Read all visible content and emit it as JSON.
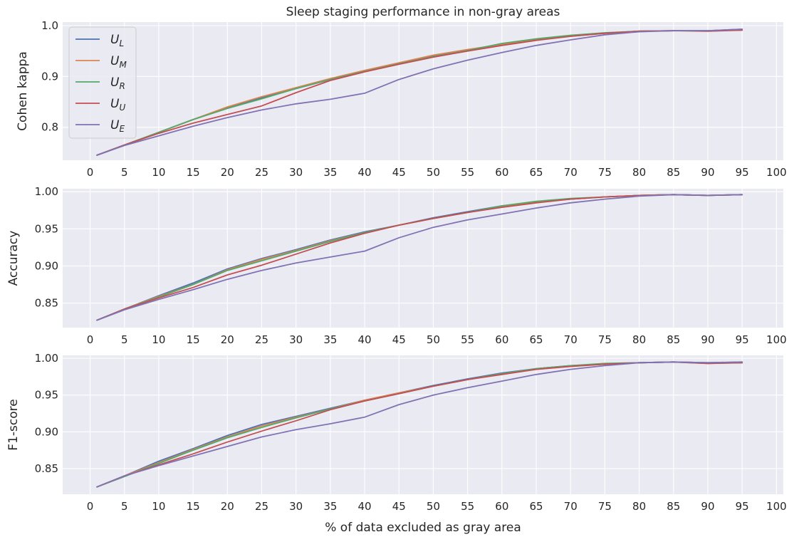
{
  "title": "Sleep staging performance in non-gray areas",
  "xlabel": "% of data excluded as gray area",
  "colors": {
    "background": "#eaeaf2",
    "grid": "#ffffff",
    "U_L": "#4c72b0",
    "U_M": "#dd8452",
    "U_R": "#55a868",
    "U_U": "#c44e52",
    "U_E": "#8172b3"
  },
  "legend": {
    "placement": "upper-left of first panel",
    "entries": [
      {
        "key": "U_L",
        "base": "U",
        "sub": "L"
      },
      {
        "key": "U_M",
        "base": "U",
        "sub": "M"
      },
      {
        "key": "U_R",
        "base": "U",
        "sub": "R"
      },
      {
        "key": "U_U",
        "base": "U",
        "sub": "U"
      },
      {
        "key": "U_E",
        "base": "U",
        "sub": "E"
      }
    ]
  },
  "chart_data": [
    {
      "type": "line",
      "ylabel": "Cohen kappa",
      "xlim": [
        -4,
        101
      ],
      "ylim": [
        0.735,
        1.007
      ],
      "xticks": [
        0,
        5,
        10,
        15,
        20,
        25,
        30,
        35,
        40,
        45,
        50,
        55,
        60,
        65,
        70,
        75,
        80,
        85,
        90,
        95,
        100
      ],
      "yticks": [
        0.8,
        0.9,
        1.0
      ],
      "ytick_labels": [
        "0.8",
        "0.9",
        "1.0"
      ],
      "grid": true,
      "x": [
        1,
        5,
        10,
        15,
        20,
        25,
        30,
        35,
        40,
        45,
        50,
        55,
        60,
        65,
        70,
        75,
        80,
        85,
        90,
        95
      ],
      "series": [
        {
          "key": "U_L",
          "values": [
            0.745,
            0.765,
            0.79,
            0.815,
            0.838,
            0.858,
            0.876,
            0.894,
            0.91,
            0.925,
            0.94,
            0.952,
            0.964,
            0.973,
            0.98,
            0.985,
            0.989,
            0.99,
            0.99,
            0.993
          ]
        },
        {
          "key": "U_M",
          "values": [
            0.745,
            0.765,
            0.79,
            0.815,
            0.84,
            0.86,
            0.878,
            0.896,
            0.912,
            0.927,
            0.942,
            0.953,
            0.963,
            0.972,
            0.979,
            0.985,
            0.989,
            0.99,
            0.99,
            0.992
          ]
        },
        {
          "key": "U_R",
          "values": [
            0.745,
            0.765,
            0.79,
            0.815,
            0.837,
            0.856,
            0.876,
            0.894,
            0.91,
            0.925,
            0.939,
            0.951,
            0.965,
            0.974,
            0.981,
            0.986,
            0.989,
            0.99,
            0.99,
            0.991
          ]
        },
        {
          "key": "U_U",
          "values": [
            0.745,
            0.765,
            0.788,
            0.808,
            0.825,
            0.842,
            0.868,
            0.892,
            0.909,
            0.924,
            0.938,
            0.95,
            0.961,
            0.971,
            0.979,
            0.985,
            0.989,
            0.99,
            0.989,
            0.991
          ]
        },
        {
          "key": "U_E",
          "values": [
            0.745,
            0.764,
            0.783,
            0.802,
            0.819,
            0.834,
            0.846,
            0.855,
            0.867,
            0.894,
            0.915,
            0.932,
            0.947,
            0.961,
            0.972,
            0.982,
            0.988,
            0.99,
            0.99,
            0.993
          ]
        }
      ]
    },
    {
      "type": "line",
      "ylabel": "Accuracy",
      "xlim": [
        -4,
        101
      ],
      "ylim": [
        0.817,
        1.004
      ],
      "xticks": [
        0,
        5,
        10,
        15,
        20,
        25,
        30,
        35,
        40,
        45,
        50,
        55,
        60,
        65,
        70,
        75,
        80,
        85,
        90,
        95,
        100
      ],
      "yticks": [
        0.85,
        0.9,
        0.95,
        1.0
      ],
      "ytick_labels": [
        "0.85",
        "0.90",
        "0.95",
        "1.00"
      ],
      "grid": true,
      "x": [
        1,
        5,
        10,
        15,
        20,
        25,
        30,
        35,
        40,
        45,
        50,
        55,
        60,
        65,
        70,
        75,
        80,
        85,
        90,
        95
      ],
      "series": [
        {
          "key": "U_L",
          "values": [
            0.827,
            0.842,
            0.86,
            0.877,
            0.896,
            0.91,
            0.922,
            0.935,
            0.946,
            0.955,
            0.965,
            0.973,
            0.981,
            0.986,
            0.99,
            0.993,
            0.995,
            0.996,
            0.995,
            0.996
          ]
        },
        {
          "key": "U_M",
          "values": [
            0.827,
            0.842,
            0.859,
            0.875,
            0.895,
            0.909,
            0.921,
            0.934,
            0.945,
            0.955,
            0.964,
            0.972,
            0.98,
            0.986,
            0.99,
            0.993,
            0.995,
            0.996,
            0.995,
            0.996
          ]
        },
        {
          "key": "U_R",
          "values": [
            0.827,
            0.842,
            0.858,
            0.875,
            0.894,
            0.907,
            0.92,
            0.933,
            0.945,
            0.955,
            0.964,
            0.972,
            0.981,
            0.987,
            0.991,
            0.993,
            0.995,
            0.996,
            0.995,
            0.996
          ]
        },
        {
          "key": "U_U",
          "values": [
            0.827,
            0.842,
            0.857,
            0.871,
            0.888,
            0.901,
            0.916,
            0.931,
            0.944,
            0.955,
            0.964,
            0.972,
            0.979,
            0.985,
            0.99,
            0.993,
            0.995,
            0.996,
            0.995,
            0.996
          ]
        },
        {
          "key": "U_E",
          "values": [
            0.827,
            0.841,
            0.855,
            0.868,
            0.882,
            0.894,
            0.904,
            0.912,
            0.92,
            0.938,
            0.952,
            0.962,
            0.97,
            0.978,
            0.985,
            0.99,
            0.994,
            0.996,
            0.995,
            0.996
          ]
        }
      ]
    },
    {
      "type": "line",
      "ylabel": "F1-score",
      "xlabel": "% of data excluded as gray area",
      "xlim": [
        -4,
        101
      ],
      "ylim": [
        0.815,
        1.004
      ],
      "xticks": [
        0,
        5,
        10,
        15,
        20,
        25,
        30,
        35,
        40,
        45,
        50,
        55,
        60,
        65,
        70,
        75,
        80,
        85,
        90,
        95,
        100
      ],
      "yticks": [
        0.85,
        0.9,
        0.95,
        1.0
      ],
      "ytick_labels": [
        "0.85",
        "0.90",
        "0.95",
        "1.00"
      ],
      "grid": true,
      "x": [
        1,
        5,
        10,
        15,
        20,
        25,
        30,
        35,
        40,
        45,
        50,
        55,
        60,
        65,
        70,
        75,
        80,
        85,
        90,
        95
      ],
      "series": [
        {
          "key": "U_L",
          "values": [
            0.825,
            0.84,
            0.86,
            0.877,
            0.895,
            0.91,
            0.921,
            0.932,
            0.943,
            0.953,
            0.963,
            0.972,
            0.98,
            0.986,
            0.99,
            0.992,
            0.994,
            0.995,
            0.994,
            0.995
          ]
        },
        {
          "key": "U_M",
          "values": [
            0.825,
            0.84,
            0.858,
            0.876,
            0.893,
            0.908,
            0.92,
            0.931,
            0.943,
            0.953,
            0.962,
            0.971,
            0.979,
            0.985,
            0.989,
            0.992,
            0.994,
            0.995,
            0.994,
            0.994
          ]
        },
        {
          "key": "U_R",
          "values": [
            0.825,
            0.839,
            0.857,
            0.875,
            0.892,
            0.906,
            0.919,
            0.931,
            0.942,
            0.952,
            0.962,
            0.971,
            0.979,
            0.986,
            0.99,
            0.993,
            0.994,
            0.995,
            0.993,
            0.994
          ]
        },
        {
          "key": "U_U",
          "values": [
            0.825,
            0.84,
            0.855,
            0.87,
            0.886,
            0.901,
            0.915,
            0.93,
            0.942,
            0.952,
            0.962,
            0.971,
            0.978,
            0.985,
            0.989,
            0.992,
            0.994,
            0.995,
            0.993,
            0.994
          ]
        },
        {
          "key": "U_E",
          "values": [
            0.825,
            0.84,
            0.854,
            0.867,
            0.88,
            0.893,
            0.903,
            0.911,
            0.92,
            0.937,
            0.95,
            0.96,
            0.969,
            0.978,
            0.985,
            0.99,
            0.994,
            0.995,
            0.994,
            0.995
          ]
        }
      ]
    }
  ]
}
